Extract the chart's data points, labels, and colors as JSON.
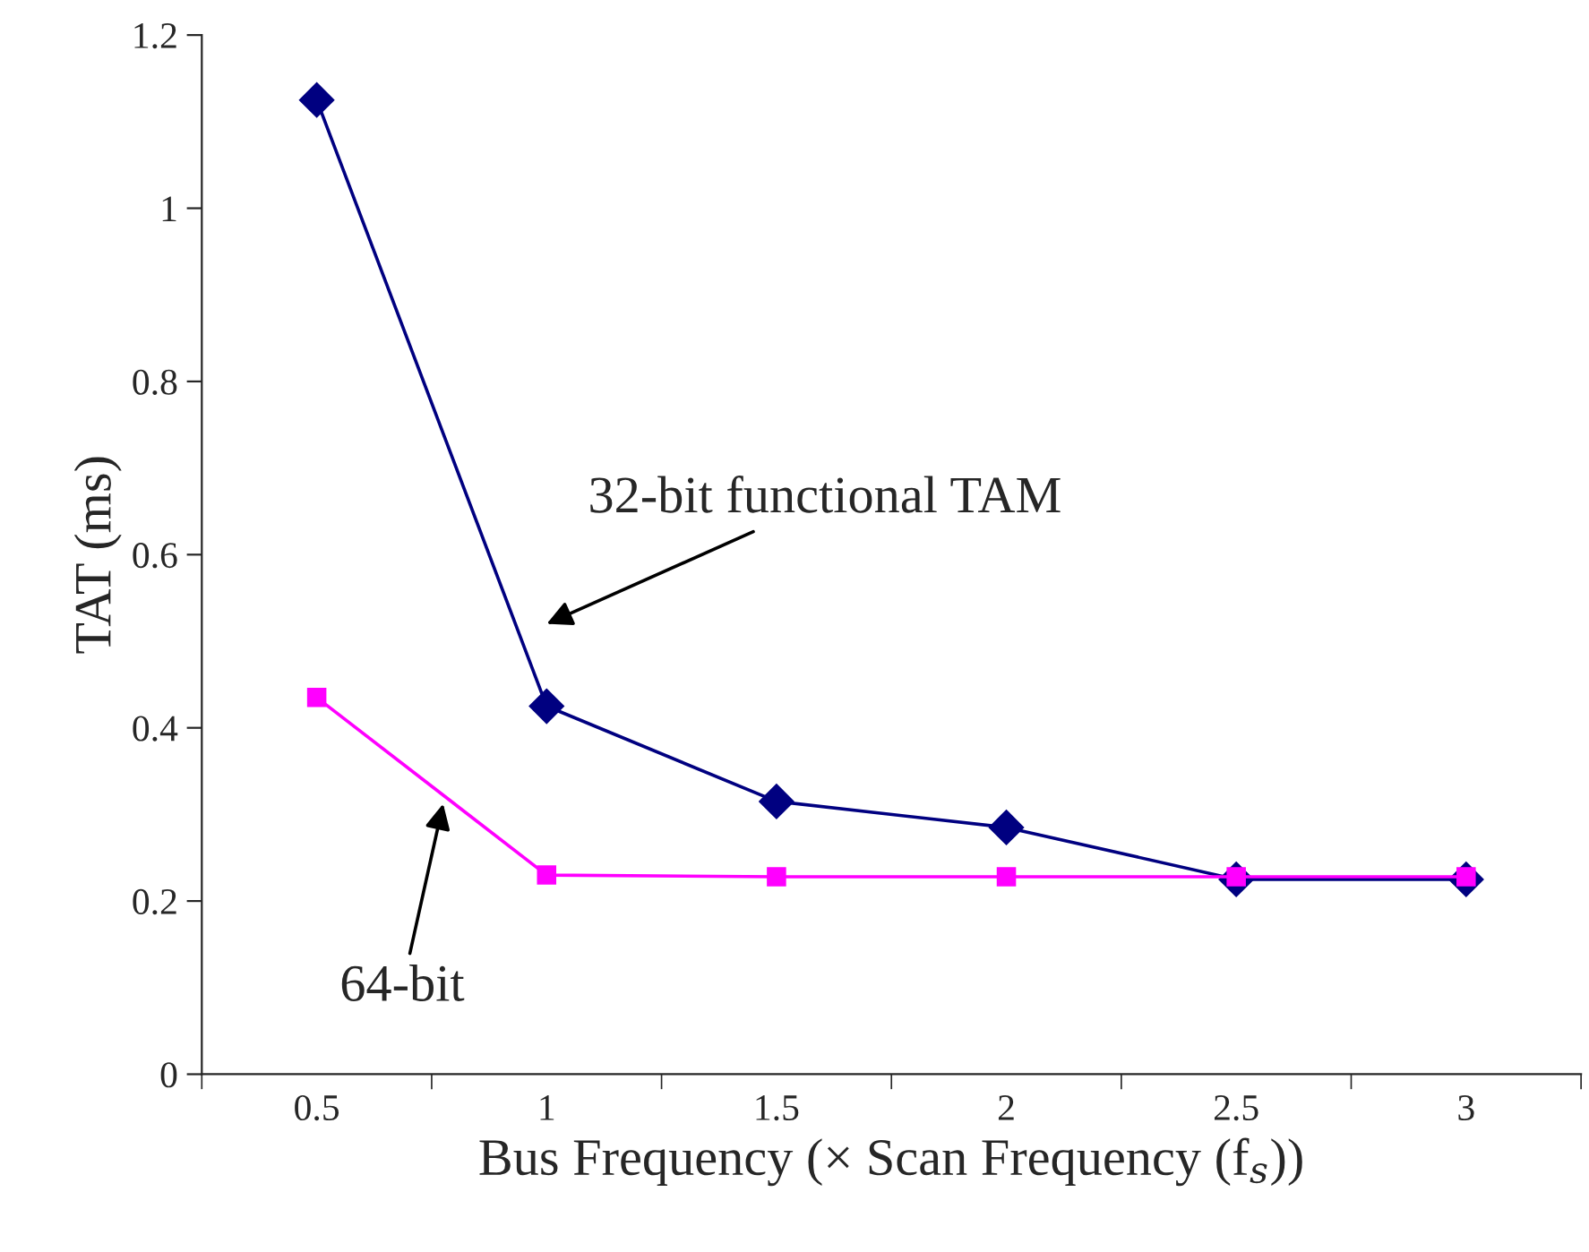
{
  "chart_data": {
    "type": "line",
    "xlabel": "Bus Frequency (× Scan Frequency (f$_{s}$))",
    "ylabel": "TAT (ms)",
    "categories": [
      "0.5",
      "1",
      "1.5",
      "2",
      "2.5",
      "3"
    ],
    "series": [
      {
        "name": "32-bit functional TAM",
        "color": "#000080",
        "marker": "diamond",
        "values": [
          1.125,
          0.425,
          0.315,
          0.285,
          0.225,
          0.225
        ]
      },
      {
        "name": "64-bit",
        "color": "#ff00ff",
        "marker": "square",
        "values": [
          0.435,
          0.23,
          0.228,
          0.228,
          0.228,
          0.228
        ]
      }
    ],
    "ylim": [
      0,
      1.2
    ],
    "yticks": [
      0,
      0.2,
      0.4,
      0.6,
      0.8,
      1,
      1.2
    ],
    "grid": false,
    "legend": false,
    "line_style": "solid"
  }
}
